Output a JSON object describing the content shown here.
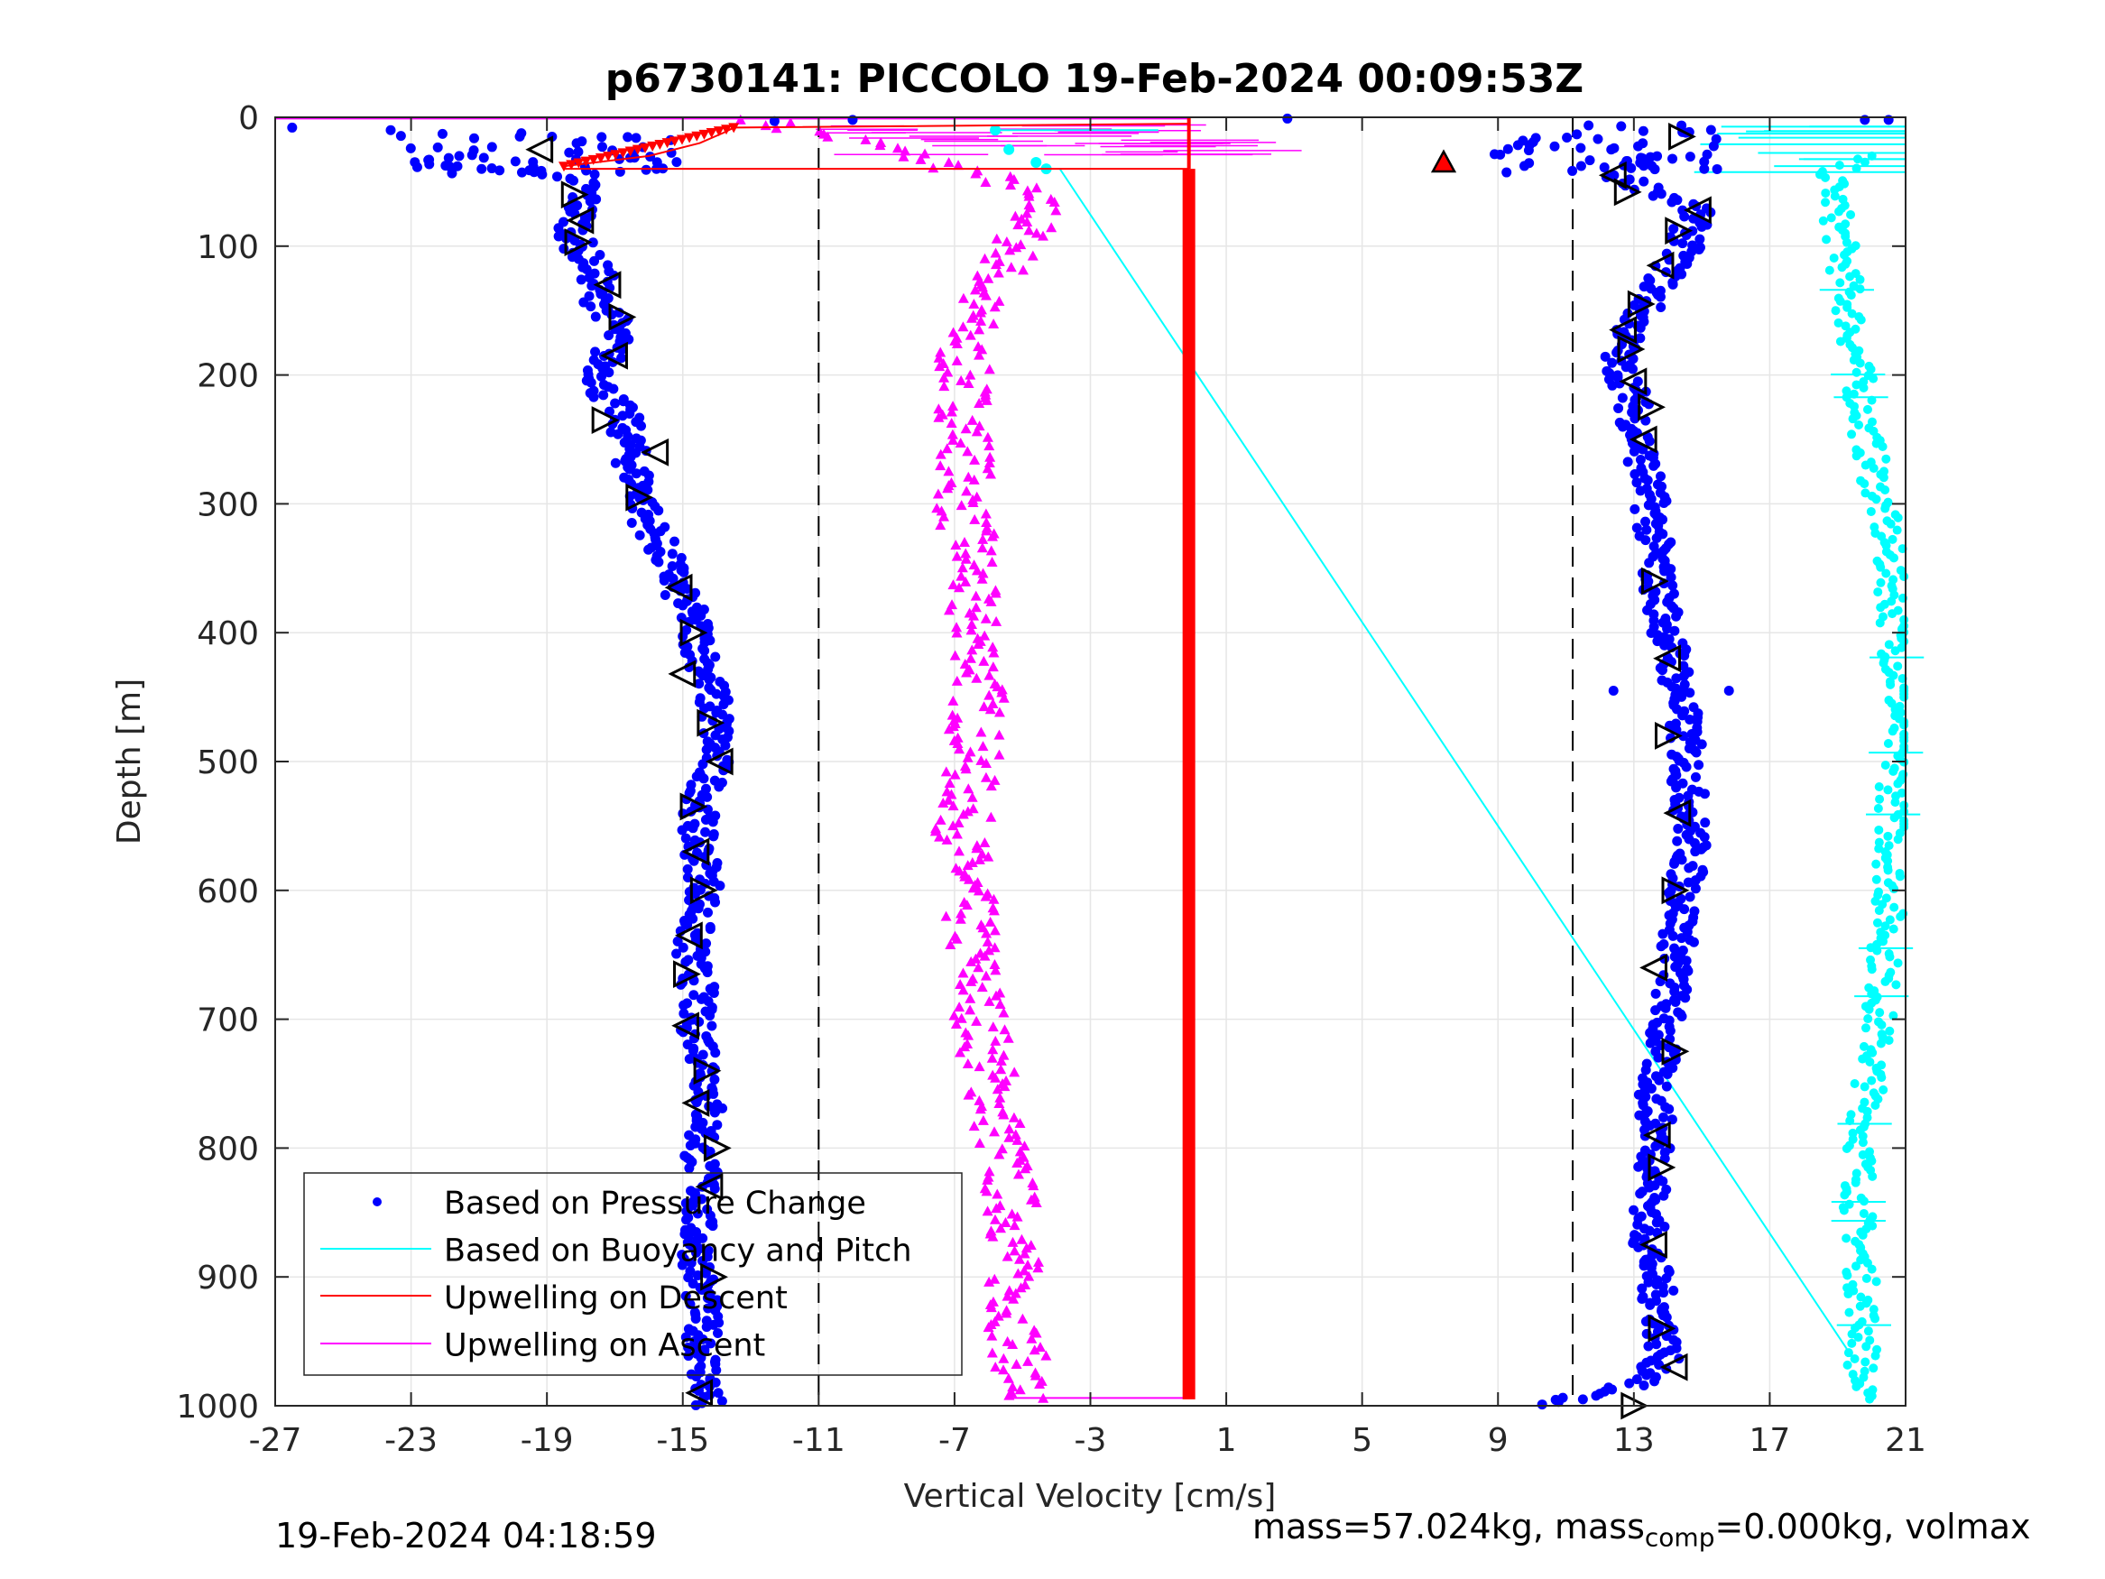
{
  "footer": {
    "timestamp": "19-Feb-2024 04:18:59",
    "mass_text": "mass=57.024kg, mass",
    "mass_sub": "comp",
    "mass_rest": "=0.000kg, volmax"
  },
  "colors": {
    "pressure": "#0000ff",
    "buoyancy": "#00ffff",
    "upwell_descent": "#ff0000",
    "upwell_ascent": "#ff00ff",
    "marker_triangle": "#000000",
    "grid": "#e6e6e6"
  },
  "chart_data": {
    "type": "scatter",
    "title": "p6730141: PICCOLO 19-Feb-2024 00:09:53Z",
    "xlabel": "Vertical Velocity [cm/s]",
    "ylabel": "Depth [m]",
    "xlim": [
      -27,
      21
    ],
    "ylim": [
      0,
      1000
    ],
    "y_reversed": true,
    "grid": true,
    "xticks": [
      -27,
      -23,
      -19,
      -15,
      -11,
      -7,
      -3,
      1,
      5,
      9,
      13,
      17,
      21
    ],
    "yticks": [
      0,
      100,
      200,
      300,
      400,
      500,
      600,
      700,
      800,
      900,
      1000
    ],
    "reference_lines_x": [
      -11,
      11.2
    ],
    "legend": {
      "placement": "bottom-left",
      "entries": [
        "Based on Pressure Change",
        "Based on Buoyancy and Pitch",
        "Upwelling on Descent",
        "Upwelling on Ascent"
      ]
    },
    "series": [
      {
        "name": "Based on Pressure Change",
        "kind": "descent",
        "x": [
          -26.5,
          -23.6,
          -19.8,
          -22.5,
          -17.8,
          -18,
          -18.2,
          -18.1,
          -17.5,
          -17.6,
          -17.1,
          -17,
          -17.3,
          -17.4,
          -16.8,
          -16.6,
          -16.5,
          -16.2,
          -16.1,
          -15.7,
          -15.4,
          -15.1,
          -14.7,
          -14.5,
          -14.2,
          -14,
          -14.1,
          -14.3,
          -14.5,
          -14.6,
          -14.4,
          -14.3,
          -14.6,
          -14.8,
          -14.5,
          -14.7,
          -14.4,
          -14.2,
          -14.3,
          -14.5,
          -14.4,
          -14.6,
          -14.5,
          -14.4,
          -14.3
        ],
        "y": [
          8,
          10,
          15,
          35,
          50,
          70,
          90,
          100,
          120,
          140,
          150,
          170,
          190,
          210,
          230,
          250,
          270,
          290,
          310,
          330,
          350,
          370,
          390,
          410,
          440,
          470,
          500,
          520,
          540,
          560,
          580,
          600,
          620,
          650,
          680,
          700,
          720,
          750,
          780,
          800,
          830,
          860,
          900,
          950,
          990
        ]
      },
      {
        "name": "Based on Pressure Change",
        "kind": "ascent",
        "x": [
          20.5,
          12.4,
          12,
          14.8,
          14.5,
          13.5,
          12.8,
          12.5,
          12.9,
          13.1,
          13.3,
          13.5,
          13.6,
          13.7,
          14,
          14.3,
          14.5,
          14.6,
          14.7,
          14.5,
          14.3,
          14.1,
          13.8,
          13.6,
          13.7,
          13.5,
          13.4,
          13.6,
          13.8,
          13.9,
          13.5,
          10.5
        ],
        "y": [
          2,
          20,
          40,
          70,
          100,
          140,
          170,
          190,
          210,
          240,
          270,
          300,
          330,
          360,
          400,
          440,
          480,
          520,
          560,
          600,
          640,
          680,
          720,
          760,
          800,
          840,
          870,
          900,
          930,
          960,
          980,
          998
        ]
      },
      {
        "name": "Based on Buoyancy and Pitch",
        "kind": "descent",
        "x": [
          -5.8,
          -5.4,
          -4.6,
          -4.3,
          19.5
        ],
        "y": [
          10,
          25,
          35,
          40,
          965
        ]
      },
      {
        "name": "Based on Buoyancy and Pitch",
        "kind": "ascent",
        "x": [
          20.8,
          18.8,
          19,
          19.2,
          19.4,
          19.6,
          19.8,
          20.1,
          20.4,
          20.6,
          20.7,
          20.8,
          20.7,
          20.6,
          20.5,
          20.3,
          20,
          19.7,
          19.6,
          19.7,
          19.8,
          19.6
        ],
        "y": [
          10,
          45,
          80,
          120,
          160,
          200,
          240,
          280,
          320,
          360,
          400,
          450,
          500,
          560,
          620,
          680,
          740,
          800,
          850,
          900,
          950,
          990
        ]
      },
      {
        "name": "Upwelling on Descent",
        "kind": "profile",
        "x": [
          -18.5,
          -16,
          -14.5,
          -13.8,
          -13.5,
          -0.1
        ],
        "y": [
          38,
          30,
          20,
          12,
          8,
          5
        ]
      },
      {
        "name": "Upwelling on Descent",
        "kind": "vertical",
        "x": [
          -0.1,
          -0.1
        ],
        "y": [
          40,
          995
        ]
      },
      {
        "name": "Upwelling on Ascent",
        "kind": "profile",
        "x": [
          -12.5,
          -9.5,
          -5.5,
          -4.5,
          -5.4,
          -6.3,
          -6.8,
          -6.7,
          -6.6,
          -6.8,
          -6.5,
          -6.6,
          -6.2,
          -6.3,
          -6.5,
          -6.8,
          -6.5,
          -6.1,
          -5.6,
          -5.2,
          -5.3,
          -5.2,
          -5
        ],
        "y": [
          5,
          20,
          50,
          70,
          110,
          140,
          180,
          220,
          260,
          300,
          340,
          380,
          420,
          460,
          500,
          560,
          640,
          720,
          800,
          860,
          900,
          940,
          980
        ]
      }
    ],
    "triangle_markers_descent": {
      "x": [
        -19.2,
        -18.2,
        -18,
        -18.1,
        -17.2,
        -16.8,
        -17,
        -17.3,
        -15.8,
        -16.3,
        -15.1,
        -14.7,
        -15,
        -14.2,
        -13.9,
        -14.7,
        -14.6,
        -14.4,
        -14.8,
        -14.9,
        -14.9,
        -14.3,
        -14.6,
        -14,
        -14.2,
        -14.1,
        -14.5
      ],
      "y": [
        25,
        60,
        80,
        97,
        130,
        155,
        185,
        235,
        260,
        295,
        365,
        400,
        432,
        470,
        500,
        535,
        570,
        600,
        635,
        665,
        705,
        740,
        765,
        800,
        830,
        900,
        990
      ]
    },
    "triangle_markers_ascent": {
      "x": [
        14.4,
        12.4,
        12.8,
        14.9,
        14.3,
        13.8,
        13.2,
        12.7,
        12.9,
        13,
        13.5,
        13.3,
        13.6,
        14,
        14,
        14.3,
        14.2,
        13.6,
        14.2,
        13.7,
        13.8,
        13.6,
        13.8,
        14.2,
        13
      ],
      "y": [
        15,
        45,
        58,
        72,
        88,
        115,
        145,
        165,
        180,
        205,
        225,
        250,
        360,
        420,
        480,
        540,
        600,
        660,
        725,
        790,
        815,
        875,
        940,
        970,
        1000
      ]
    },
    "special_marker": {
      "x": 7.4,
      "y": 35
    },
    "cyan_connector": {
      "x": [
        -3.9,
        19.5
      ],
      "y": [
        40,
        965
      ]
    }
  }
}
